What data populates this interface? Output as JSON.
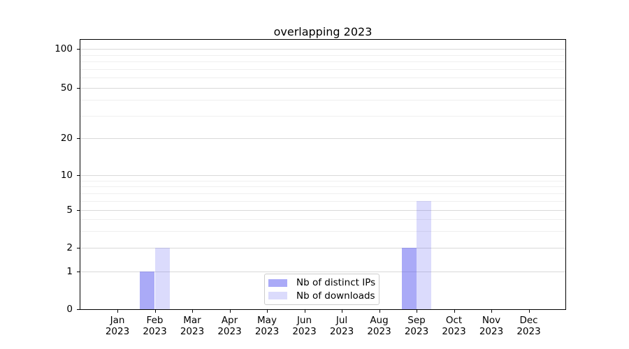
{
  "chart_data": {
    "type": "bar",
    "title": "overlapping 2023",
    "categories": [
      "Jan",
      "Feb",
      "Mar",
      "Apr",
      "May",
      "Jun",
      "Jul",
      "Aug",
      "Sep",
      "Oct",
      "Nov",
      "Dec"
    ],
    "year_label": "2023",
    "series": [
      {
        "name": "Nb of distinct IPs",
        "color": "rgba(85,85,240,0.5)",
        "color_hex_on_white": "#aaaaf7",
        "values": [
          0,
          1,
          0,
          0,
          0,
          0,
          0,
          0,
          2,
          0,
          0,
          0
        ]
      },
      {
        "name": "Nb of downloads",
        "color": "rgba(85,85,240,0.21)",
        "color_hex_on_white": "#dcdcfa",
        "values": [
          0,
          2,
          0,
          0,
          0,
          0,
          0,
          0,
          6,
          0,
          0,
          0
        ]
      }
    ],
    "xlabel": "",
    "ylabel": "",
    "y_ticks": [
      0,
      1,
      2,
      5,
      10,
      20,
      50,
      100
    ],
    "y_minor_gridlines": [
      3,
      4,
      6,
      7,
      8,
      9,
      30,
      40,
      60,
      70,
      80,
      90
    ],
    "ylim": [
      0,
      100
    ],
    "scale": "log-like with 0 baseline",
    "grid": "horizontal major and minor, no vertical",
    "legend_position": "lower center",
    "colors": {
      "grid_major": "#d9d9d9",
      "grid_minor": "#efefef",
      "axis": "#000000",
      "background": "#ffffff"
    }
  }
}
